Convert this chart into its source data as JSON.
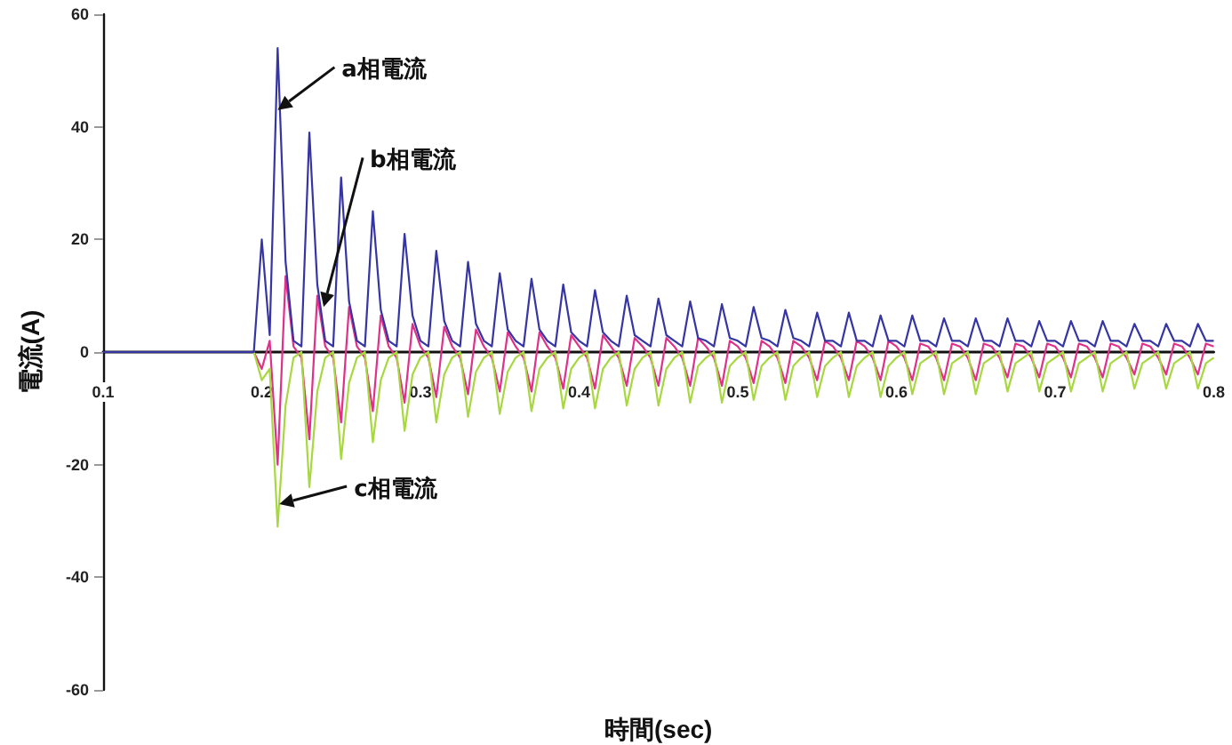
{
  "chart_data": {
    "type": "line",
    "xlabel": "時間(sec)",
    "ylabel": "電流(A)",
    "xlim": [
      0.1,
      0.8
    ],
    "xticks": [
      0.1,
      0.2,
      0.3,
      0.4,
      0.5,
      0.6,
      0.7,
      0.8
    ],
    "ylim": [
      -60,
      60
    ],
    "yticks": [
      -60,
      -40,
      -20,
      0,
      20,
      40,
      60
    ],
    "grid": false,
    "annotations": [
      {
        "text": "a相電流",
        "x": 0.21,
        "y": 43
      },
      {
        "text": "b相電流",
        "x": 0.239,
        "y": 8
      },
      {
        "text": "c相電流",
        "x": 0.211,
        "y": -27
      }
    ],
    "x": [
      0.1,
      0.195,
      0.2,
      0.205,
      0.21,
      0.215,
      0.22,
      0.225,
      0.23,
      0.235,
      0.24,
      0.245,
      0.25,
      0.255,
      0.26,
      0.265,
      0.27,
      0.275,
      0.28,
      0.285,
      0.29,
      0.295,
      0.3,
      0.305,
      0.31,
      0.315,
      0.32,
      0.325,
      0.33,
      0.335,
      0.34,
      0.345,
      0.35,
      0.355,
      0.36,
      0.365,
      0.37,
      0.375,
      0.38,
      0.385,
      0.39,
      0.395,
      0.4,
      0.405,
      0.41,
      0.415,
      0.42,
      0.425,
      0.43,
      0.435,
      0.44,
      0.445,
      0.45,
      0.455,
      0.46,
      0.465,
      0.47,
      0.475,
      0.48,
      0.485,
      0.49,
      0.495,
      0.5,
      0.505,
      0.51,
      0.515,
      0.52,
      0.525,
      0.53,
      0.535,
      0.54,
      0.545,
      0.55,
      0.555,
      0.56,
      0.565,
      0.57,
      0.575,
      0.58,
      0.585,
      0.59,
      0.595,
      0.6,
      0.605,
      0.61,
      0.615,
      0.62,
      0.625,
      0.63,
      0.635,
      0.64,
      0.645,
      0.65,
      0.655,
      0.66,
      0.665,
      0.67,
      0.675,
      0.68,
      0.685,
      0.69,
      0.695,
      0.7,
      0.705,
      0.71,
      0.715,
      0.72,
      0.725,
      0.73,
      0.735,
      0.74,
      0.745,
      0.75,
      0.755,
      0.76,
      0.765,
      0.77,
      0.775,
      0.78,
      0.785,
      0.79,
      0.795,
      0.8
    ],
    "series": [
      {
        "color": "#e0308a",
        "values": [
          0,
          0,
          -3,
          2,
          -20,
          13.5,
          1,
          -1,
          -15.5,
          10,
          1,
          -1,
          -12.5,
          8,
          1,
          -1,
          -10.5,
          6.5,
          1,
          -1,
          -9,
          5,
          1,
          -1,
          -8,
          4.5,
          1,
          -1,
          -7.5,
          4,
          1,
          -1,
          -7,
          3.5,
          1,
          -1,
          -7,
          3.5,
          1,
          -1,
          -6.5,
          3,
          1,
          -1,
          -6.5,
          3,
          1,
          -1,
          -6,
          2.5,
          1,
          -1,
          -6,
          2.5,
          1,
          -1,
          -6,
          2.5,
          1,
          -1,
          -6,
          2,
          1,
          -1,
          -5.5,
          2,
          1,
          -1,
          -5.5,
          2,
          1,
          -1,
          -5,
          2,
          1,
          -1,
          -5,
          2,
          1,
          -1,
          -5,
          2,
          1,
          -1,
          -5,
          1.5,
          1,
          -1,
          -5,
          1.5,
          1,
          -1,
          -5,
          1.5,
          1,
          -1,
          -4.5,
          1.5,
          1,
          -1,
          -4.5,
          1.5,
          1,
          -1,
          -4.5,
          1.5,
          1,
          -1,
          -4.5,
          1.5,
          1,
          -1,
          -4,
          1.5,
          1,
          -1,
          -4,
          1.5,
          1,
          -1,
          -4,
          1.5,
          1
        ]
      },
      {
        "color": "#a8d840",
        "values": [
          0,
          0,
          -5,
          -3,
          -31,
          -9.5,
          -1,
          0,
          -24,
          -7,
          -1,
          0,
          -19,
          -5.5,
          -1,
          0,
          -16,
          -5,
          -1,
          0,
          -14,
          -4,
          -1,
          0,
          -12.5,
          -4,
          -1,
          0,
          -11.5,
          -3.5,
          -1,
          0,
          -11,
          -3.5,
          -1,
          0,
          -10.5,
          -3,
          -1,
          0,
          -10,
          -3,
          -1,
          0,
          -10,
          -3,
          -1,
          0,
          -9.5,
          -3,
          -1,
          0,
          -9.5,
          -3,
          -1,
          0,
          -9,
          -2.5,
          -1,
          0,
          -9,
          -2.5,
          -1,
          0,
          -8.5,
          -2.5,
          -1,
          0,
          -8.5,
          -2.5,
          -1,
          0,
          -8,
          -2.5,
          -1,
          0,
          -8,
          -2.5,
          -1,
          0,
          -8,
          -2.5,
          -1,
          0,
          -7.5,
          -2,
          -1,
          0,
          -7.5,
          -2,
          -1,
          0,
          -7.5,
          -2,
          -1,
          0,
          -7,
          -2,
          -1,
          0,
          -7,
          -2,
          -1,
          0,
          -7,
          -2,
          -1,
          0,
          -7,
          -2,
          -1,
          0,
          -6.5,
          -2,
          -1,
          0,
          -6.5,
          -2,
          -1,
          0,
          -6.5,
          -2,
          -1
        ]
      },
      {
        "color": "#3535a5",
        "values": [
          0,
          0,
          20,
          3,
          54,
          16,
          2,
          1,
          39,
          12,
          2,
          1,
          31,
          9,
          2,
          1,
          25,
          7.5,
          2,
          1,
          21,
          6.5,
          2,
          1,
          18,
          5.5,
          2,
          1,
          16,
          5,
          2,
          1,
          14,
          4,
          2,
          1,
          13,
          4,
          2,
          1,
          12,
          3.5,
          2,
          1,
          11,
          3.5,
          2,
          1,
          10,
          3,
          2,
          1,
          9.5,
          3,
          2,
          1,
          9,
          2.5,
          2,
          1,
          8.5,
          2.5,
          2,
          1,
          8,
          2.5,
          2,
          1,
          7.5,
          2.5,
          2,
          1,
          7,
          2,
          2,
          1,
          7,
          2,
          2,
          1,
          6.5,
          2,
          2,
          1,
          6.5,
          2,
          2,
          1,
          6,
          2,
          2,
          1,
          6,
          2,
          2,
          1,
          6,
          2,
          2,
          1,
          5.5,
          2,
          2,
          1,
          5.5,
          2,
          2,
          1,
          5.5,
          2,
          2,
          1,
          5,
          2,
          2,
          1,
          5,
          2,
          2,
          1,
          5,
          2,
          2
        ]
      }
    ]
  }
}
